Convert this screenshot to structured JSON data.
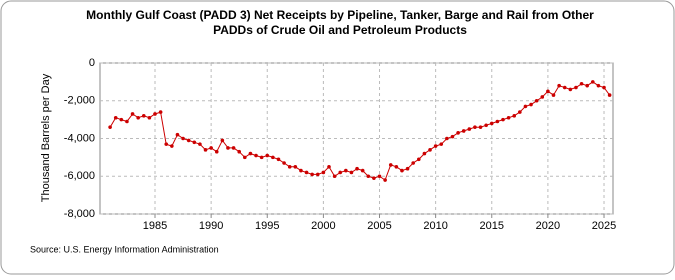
{
  "chart_data": {
    "type": "line",
    "title": [
      "Monthly Gulf Coast (PADD 3) Net Receipts by Pipeline, Tanker, Barge and Rail from Other",
      "PADDs of Crude Oil and Petroleum Products"
    ],
    "y_label": "Thousand Barrels per Day",
    "source": "Source: U.S. Energy Information Administration",
    "xlim": [
      1980.1,
      2025.8
    ],
    "xticks": [
      1985,
      1990,
      1995,
      2000,
      2005,
      2010,
      2015,
      2020,
      2025
    ],
    "ylim": [
      -8000,
      0
    ],
    "yticks": [
      {
        "value": -8000,
        "label": "-8,000"
      },
      {
        "value": -6000,
        "label": "-6,000"
      },
      {
        "value": -4000,
        "label": "-4,000"
      },
      {
        "value": -2000,
        "label": "-2,000"
      },
      0
    ],
    "grid": true,
    "series": [
      {
        "color": "#cc0000",
        "x": [
          1981,
          1981.5,
          1982,
          1982.5,
          1983,
          1983.5,
          1984,
          1984.5,
          1985,
          1985.5,
          1986,
          1986.5,
          1987,
          1987.5,
          1988,
          1988.5,
          1989,
          1989.5,
          1990,
          1990.5,
          1991,
          1991.5,
          1992,
          1992.5,
          1993,
          1993.5,
          1994,
          1994.5,
          1995,
          1995.5,
          1996,
          1996.5,
          1997,
          1997.5,
          1998,
          1998.5,
          1999,
          1999.5,
          2000,
          2000.5,
          2001,
          2001.5,
          2002,
          2002.5,
          2003,
          2003.5,
          2004,
          2004.5,
          2005,
          2005.5,
          2006,
          2006.5,
          2007,
          2007.5,
          2008,
          2008.5,
          2009,
          2009.5,
          2010,
          2010.5,
          2011,
          2011.5,
          2012,
          2012.5,
          2013,
          2013.5,
          2014,
          2014.5,
          2015,
          2015.5,
          2016,
          2016.5,
          2017,
          2017.5,
          2018,
          2018.5,
          2019,
          2019.5,
          2020,
          2020.5,
          2021,
          2021.5,
          2022,
          2022.5,
          2023,
          2023.5,
          2024,
          2024.5,
          2025,
          2025.5
        ],
        "values": [
          -3400,
          -2900,
          -3000,
          -3100,
          -2700,
          -2900,
          -2800,
          -2900,
          -2700,
          -2600,
          -4300,
          -4400,
          -3800,
          -4000,
          -4100,
          -4200,
          -4300,
          -4600,
          -4500,
          -4700,
          -4100,
          -4500,
          -4500,
          -4700,
          -5000,
          -4800,
          -4900,
          -5000,
          -4900,
          -5000,
          -5100,
          -5300,
          -5500,
          -5500,
          -5700,
          -5800,
          -5900,
          -5900,
          -5800,
          -5500,
          -6000,
          -5800,
          -5700,
          -5800,
          -5600,
          -5700,
          -6000,
          -6100,
          -6000,
          -6200,
          -5400,
          -5500,
          -5700,
          -5600,
          -5300,
          -5100,
          -4800,
          -4600,
          -4400,
          -4300,
          -4000,
          -3900,
          -3700,
          -3600,
          -3500,
          -3400,
          -3400,
          -3300,
          -3200,
          -3100,
          -3000,
          -2900,
          -2800,
          -2600,
          -2300,
          -2200,
          -2000,
          -1800,
          -1500,
          -1700,
          -1200,
          -1300,
          -1400,
          -1300,
          -1100,
          -1200,
          -1000,
          -1200,
          -1300,
          -1700
        ]
      }
    ]
  }
}
